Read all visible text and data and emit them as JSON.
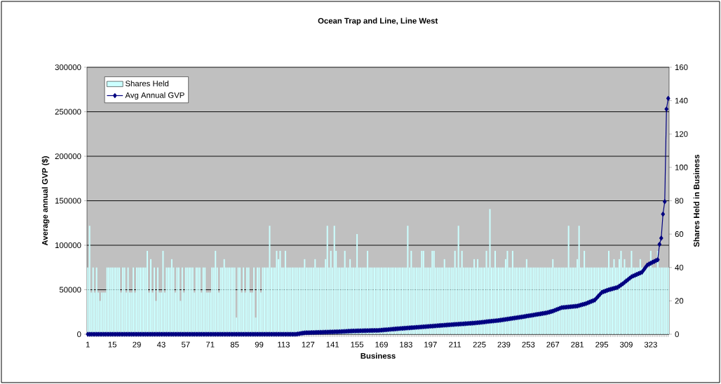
{
  "chart_data": {
    "type": "bar",
    "title": "Ocean Trap and Line, Line West",
    "xlabel": "Business",
    "ylabel": "Average annual GVP ($)",
    "y2label": "Shares Held in Business",
    "categories": [
      "1",
      null,
      null,
      null,
      null,
      null,
      null,
      null,
      null,
      null,
      null,
      null,
      null,
      null,
      "15",
      null,
      null,
      null,
      null,
      null,
      null,
      null,
      null,
      null,
      null,
      null,
      null,
      null,
      "29",
      null,
      null,
      null,
      null,
      null,
      null,
      null,
      null,
      null,
      null,
      null,
      null,
      null,
      "43",
      null,
      null,
      null,
      null,
      null,
      null,
      null,
      null,
      null,
      null,
      null,
      null,
      null,
      "57",
      null,
      null,
      null,
      null,
      null,
      null,
      null,
      null,
      null,
      null,
      null,
      null,
      null,
      "71",
      null,
      null,
      null,
      null,
      null,
      null,
      null,
      null,
      null,
      null,
      null,
      null,
      null,
      "85",
      null,
      null,
      null,
      null,
      null,
      null,
      null,
      null,
      null,
      null,
      null,
      null,
      null,
      "99",
      null,
      null,
      null,
      null,
      null,
      null,
      null,
      null,
      null,
      null,
      null,
      null,
      null,
      "113",
      null,
      null,
      null,
      null,
      null,
      null,
      null,
      null,
      null,
      null,
      null,
      null,
      null,
      "127",
      null,
      null,
      null,
      null,
      null,
      null,
      null,
      null,
      null,
      null,
      null,
      null,
      null,
      "141",
      null,
      null,
      null,
      null,
      null,
      null,
      null,
      null,
      null,
      null,
      null,
      null,
      null,
      "155",
      null,
      null,
      null,
      null,
      null,
      null,
      null,
      null,
      null,
      null,
      null,
      null,
      null,
      "169",
      null,
      null,
      null,
      null,
      null,
      null,
      null,
      null,
      null,
      null,
      null,
      null,
      null,
      "183",
      null,
      null,
      null,
      null,
      null,
      null,
      null,
      null,
      null,
      null,
      null,
      null,
      null,
      "197",
      null,
      null,
      null,
      null,
      null,
      null,
      null,
      null,
      null,
      null,
      null,
      null,
      null,
      "211",
      null,
      null,
      null,
      null,
      null,
      null,
      null,
      null,
      null,
      null,
      null,
      null,
      null,
      "225",
      null,
      null,
      null,
      null,
      null,
      null,
      null,
      null,
      null,
      null,
      null,
      null,
      null,
      "239",
      null,
      null,
      null,
      null,
      null,
      null,
      null,
      null,
      null,
      null,
      null,
      null,
      null,
      "253",
      null,
      null,
      null,
      null,
      null,
      null,
      null,
      null,
      null,
      null,
      null,
      null,
      null,
      "267",
      null,
      null,
      null,
      null,
      null,
      null,
      null,
      null,
      null,
      null,
      null,
      null,
      null,
      "281",
      null,
      null,
      null,
      null,
      null,
      null,
      null,
      null,
      null,
      null,
      null,
      null,
      null,
      "295",
      null,
      null,
      null,
      null,
      null,
      null,
      null,
      null,
      null,
      null,
      null,
      null,
      null,
      "309",
      null,
      null,
      null,
      null,
      null,
      null,
      null,
      null,
      null,
      null,
      null,
      null,
      null,
      "323",
      null,
      null,
      null,
      null,
      null,
      null,
      null,
      null,
      null,
      null
    ],
    "series": [
      {
        "name": "Shares Held",
        "axis": "y2",
        "color": "#ccffff",
        "values": [
          40,
          65,
          25,
          40,
          25,
          40,
          25,
          20,
          25,
          25,
          25,
          40,
          40,
          40,
          40,
          40,
          40,
          40,
          40,
          25,
          40,
          40,
          25,
          40,
          25,
          25,
          40,
          25,
          40,
          40,
          40,
          40,
          40,
          40,
          50,
          25,
          45,
          25,
          40,
          20,
          40,
          25,
          25,
          50,
          25,
          40,
          40,
          40,
          45,
          40,
          25,
          40,
          40,
          20,
          40,
          25,
          40,
          40,
          40,
          40,
          40,
          25,
          40,
          40,
          40,
          25,
          40,
          40,
          25,
          25,
          25,
          40,
          40,
          50,
          40,
          25,
          40,
          40,
          45,
          40,
          40,
          40,
          40,
          40,
          40,
          10,
          40,
          40,
          25,
          40,
          25,
          40,
          40,
          25,
          25,
          40,
          10,
          40,
          40,
          25,
          40,
          40,
          40,
          40,
          65,
          40,
          40,
          40,
          50,
          45,
          50,
          40,
          40,
          50,
          40,
          40,
          40,
          40,
          40,
          40,
          40,
          40,
          40,
          40,
          45,
          40,
          40,
          40,
          40,
          40,
          45,
          40,
          40,
          40,
          40,
          40,
          45,
          65,
          40,
          50,
          40,
          65,
          50,
          40,
          40,
          40,
          40,
          50,
          40,
          40,
          45,
          40,
          40,
          40,
          60,
          40,
          40,
          40,
          40,
          40,
          50,
          40,
          40,
          40,
          40,
          40,
          40,
          40,
          40,
          40,
          40,
          40,
          40,
          40,
          40,
          40,
          40,
          40,
          40,
          40,
          40,
          40,
          40,
          65,
          40,
          50,
          40,
          40,
          40,
          40,
          40,
          50,
          50,
          40,
          40,
          40,
          40,
          50,
          50,
          40,
          40,
          40,
          40,
          40,
          45,
          40,
          40,
          40,
          40,
          40,
          50,
          40,
          65,
          40,
          50,
          40,
          40,
          40,
          40,
          40,
          40,
          45,
          40,
          45,
          40,
          40,
          40,
          40,
          50,
          40,
          75,
          40,
          40,
          50,
          40,
          40,
          40,
          40,
          40,
          45,
          50,
          40,
          40,
          50,
          40,
          40,
          40,
          40,
          40,
          40,
          40,
          45,
          40,
          40,
          40,
          40,
          40,
          40,
          40,
          40,
          40,
          40,
          40,
          40,
          40,
          40,
          45,
          40,
          40,
          40,
          40,
          40,
          40,
          40,
          40,
          65,
          40,
          40,
          40,
          40,
          45,
          65,
          40,
          40,
          50,
          40,
          40,
          40,
          40,
          40,
          40,
          40,
          40,
          40,
          40,
          40,
          40,
          40,
          50,
          40,
          40,
          45,
          40,
          40,
          45,
          50,
          40,
          45,
          40,
          40,
          40,
          50,
          40,
          40,
          40,
          40,
          45,
          40,
          40,
          40,
          40,
          40,
          50,
          40,
          40,
          40,
          50,
          40,
          40,
          40,
          40,
          40,
          40
        ]
      },
      {
        "name": "Avg Annual GVP",
        "type": "line",
        "color": "#000080",
        "values": [
          0,
          0,
          0,
          0,
          0,
          0,
          0,
          0,
          0,
          0,
          0,
          0,
          0,
          0,
          0,
          0,
          0,
          0,
          0,
          0,
          0,
          0,
          0,
          0,
          0,
          0,
          0,
          0,
          0,
          0,
          0,
          0,
          0,
          0,
          0,
          0,
          0,
          0,
          0,
          0,
          0,
          0,
          0,
          0,
          0,
          0,
          0,
          0,
          0,
          0,
          0,
          0,
          0,
          0,
          0,
          0,
          0,
          0,
          0,
          0,
          0,
          0,
          0,
          0,
          0,
          0,
          0,
          0,
          0,
          0,
          0,
          0,
          0,
          0,
          0,
          0,
          0,
          0,
          0,
          0,
          0,
          0,
          0,
          0,
          0,
          0,
          0,
          0,
          0,
          0,
          0,
          0,
          0,
          0,
          0,
          0,
          0,
          0,
          0,
          0,
          0,
          0,
          0,
          0,
          0,
          0,
          0,
          0,
          0,
          0,
          0,
          0,
          0,
          0,
          0,
          0,
          0,
          0,
          0,
          0,
          300,
          600,
          1000,
          1300,
          1600,
          1700,
          1700,
          1800,
          1900,
          1900,
          2000,
          2100,
          2100,
          2200,
          2200,
          2300,
          2400,
          2400,
          2500,
          2600,
          2600,
          2700,
          2800,
          2800,
          2900,
          3000,
          3100,
          3200,
          3300,
          3400,
          3500,
          3600,
          3700,
          3700,
          3800,
          3800,
          3900,
          3900,
          4000,
          4000,
          4100,
          4100,
          4200,
          4200,
          4300,
          4300,
          4300,
          4500,
          4600,
          4800,
          5000,
          5100,
          5300,
          5500,
          5700,
          5800,
          6000,
          6200,
          6300,
          6500,
          6600,
          6800,
          6900,
          7100,
          7200,
          7400,
          7500,
          7600,
          7800,
          7900,
          8100,
          8200,
          8400,
          8500,
          8700,
          8800,
          9000,
          9100,
          9300,
          9400,
          9600,
          9700,
          9900,
          10000,
          10200,
          10300,
          10500,
          10600,
          10800,
          10900,
          11100,
          11200,
          11300,
          11500,
          11600,
          11700,
          11900,
          12000,
          12200,
          12300,
          12500,
          12600,
          12800,
          13000,
          13200,
          13400,
          13600,
          13800,
          14100,
          14300,
          14500,
          14700,
          14900,
          15100,
          15300,
          15500,
          15800,
          16100,
          16400,
          16700,
          17000,
          17300,
          17600,
          17900,
          18200,
          18500,
          18800,
          19100,
          19400,
          19700,
          20000,
          20400,
          20700,
          21000,
          21300,
          21600,
          22000,
          22300,
          22600,
          22900,
          23300,
          23600,
          23900,
          24400,
          24900,
          25500,
          26000,
          26800,
          27600,
          28300,
          29100,
          29900,
          30100,
          30300,
          30500,
          30700,
          30900,
          31100,
          31300,
          31500,
          31700,
          32300,
          32800,
          33400,
          33900,
          34500,
          35300,
          36100,
          36900,
          37700,
          38500,
          40600,
          42800,
          44900,
          47000,
          47800,
          48500,
          49300,
          50000,
          50500,
          51100,
          51600,
          52200,
          52700,
          54000,
          55400,
          56700,
          58300,
          59900,
          61400,
          63000,
          64600,
          65500,
          66300,
          67200,
          68100,
          68900,
          69800,
          72400,
          75100,
          77700,
          78800,
          79800,
          80900,
          81800,
          82800,
          83700,
          101000,
          108000,
          135000,
          149000,
          253000,
          265000
        ]
      }
    ],
    "ylim": [
      0,
      300000
    ],
    "yticks": [
      0,
      50000,
      100000,
      150000,
      200000,
      250000,
      300000
    ],
    "y2lim": [
      0,
      160
    ],
    "y2ticks": [
      0,
      20,
      40,
      60,
      80,
      100,
      120,
      140,
      160
    ],
    "grid": "y",
    "legend": "top left",
    "marker": "diamond"
  }
}
